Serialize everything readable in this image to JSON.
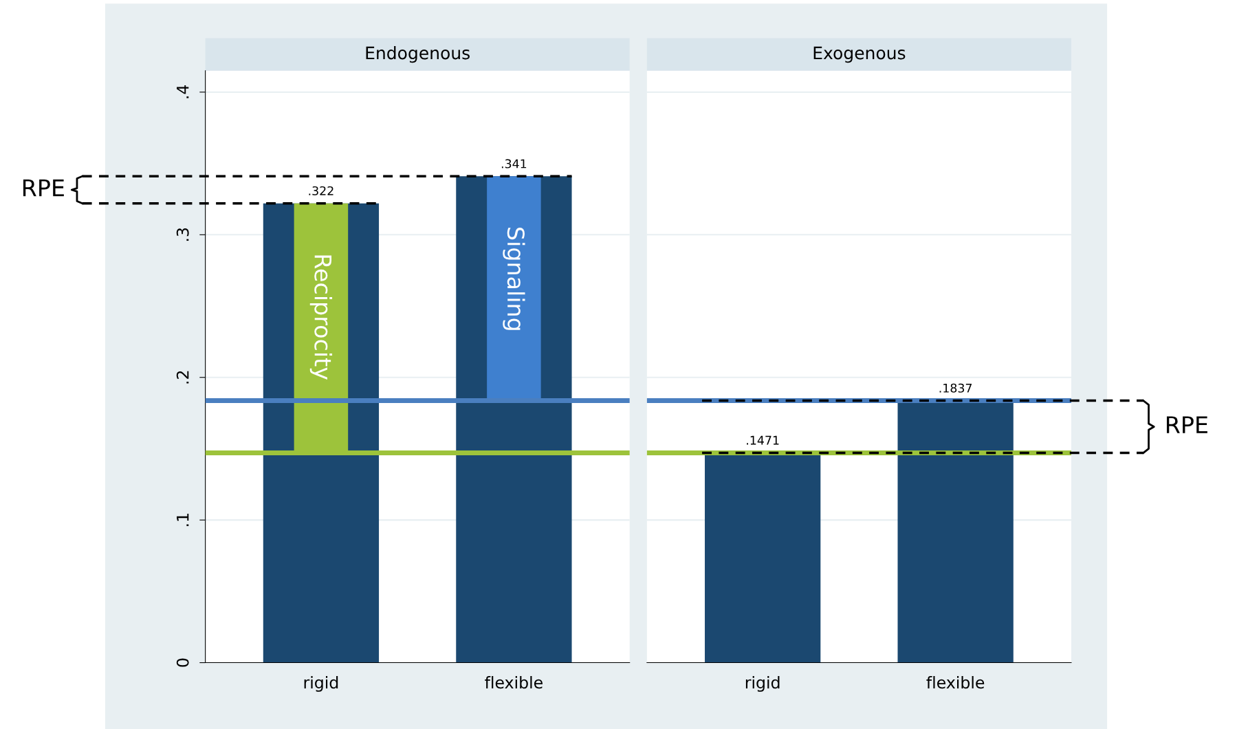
{
  "chart_data": [
    {
      "type": "bar",
      "title": "Endogenous",
      "categories": [
        "rigid",
        "flexible"
      ],
      "series": [
        {
          "color": "#1b4870",
          "values": [
            0.322,
            0.341
          ],
          "value_labels": [
            ".322",
            ".341"
          ]
        },
        {
          "name": "Reciprocity",
          "color": "#9dc33b",
          "base": [
            0.1471,
            null
          ],
          "values": [
            0.1749,
            null
          ]
        },
        {
          "name": "Signaling",
          "color": "#3f80cf",
          "base": [
            null,
            0.1837
          ],
          "values": [
            null,
            0.1573
          ]
        }
      ],
      "ylim": [
        0,
        0.415
      ],
      "yticks": [
        {
          "value": 0,
          "label": "0"
        },
        {
          "value": 0.1,
          "label": ".1"
        },
        {
          "value": 0.2,
          "label": ".2"
        },
        {
          "value": 0.3,
          "label": ".3"
        },
        {
          "value": 0.4,
          "label": ".4"
        }
      ],
      "grid": "y",
      "ref_lines": [
        {
          "axis": "y",
          "value": 0.1471,
          "color": "#9dc33b",
          "line_style": "solid"
        },
        {
          "axis": "y",
          "value": 0.1837,
          "color": "#4a7fc0",
          "line_style": "solid"
        },
        {
          "axis": "y",
          "value": 0.322,
          "color": "#000000",
          "line_style": "dashed"
        },
        {
          "axis": "y",
          "value": 0.341,
          "color": "#000000",
          "line_style": "dashed"
        }
      ],
      "annotations": [
        "RPE"
      ]
    },
    {
      "type": "bar",
      "title": "Exogenous",
      "categories": [
        "rigid",
        "flexible"
      ],
      "series": [
        {
          "color": "#1b4870",
          "values": [
            0.1471,
            0.1837
          ],
          "value_labels": [
            ".1471",
            ".1837"
          ]
        }
      ],
      "ylim": [
        0,
        0.415
      ],
      "yticks": [
        {
          "value": 0,
          "label": null
        },
        {
          "value": 0.1,
          "label": null
        },
        {
          "value": 0.2,
          "label": null
        },
        {
          "value": 0.3,
          "label": null
        },
        {
          "value": 0.4,
          "label": null
        }
      ],
      "grid": "y",
      "tick_labels": "x",
      "ref_lines": [
        {
          "axis": "y",
          "value": 0.1471,
          "color": "#9dc33b",
          "line_style": "solid"
        },
        {
          "axis": "y",
          "value": 0.1837,
          "color": "#4a7fc0",
          "line_style": "solid"
        },
        {
          "axis": "y",
          "value": 0.1471,
          "color": "#000000",
          "line_style": "dashed"
        },
        {
          "axis": "y",
          "value": 0.1837,
          "color": "#000000",
          "line_style": "dashed"
        }
      ],
      "annotations": [
        "RPE"
      ]
    }
  ]
}
